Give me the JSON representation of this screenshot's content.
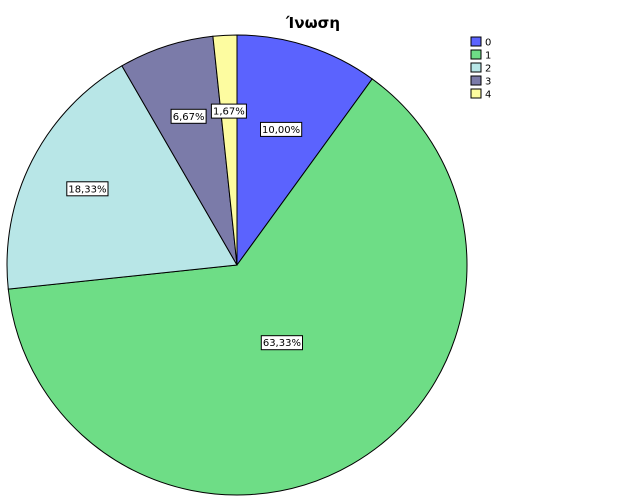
{
  "chart_data": {
    "type": "pie",
    "title": "Ίνωση",
    "legend_position": "top-right",
    "categories": [
      "0",
      "1",
      "2",
      "3",
      "4"
    ],
    "values": [
      10.0,
      63.33,
      18.33,
      6.67,
      1.67
    ],
    "value_labels": [
      "10,00%",
      "63,33%",
      "18,33%",
      "6,67%",
      "1,67%"
    ],
    "colors": [
      "#5b63fe",
      "#6edd86",
      "#b8e6e7",
      "#7b7ba9",
      "#fdfca0"
    ]
  }
}
